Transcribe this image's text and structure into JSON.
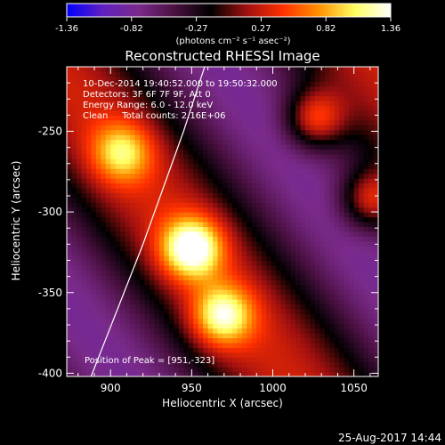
{
  "chart_data": {
    "type": "heatmap",
    "title": "Reconstructed RHESSI Image",
    "xlabel": "Heliocentric X (arcsec)",
    "ylabel": "Heliocentric Y (arcsec)",
    "xlim": [
      873,
      1065
    ],
    "ylim": [
      -402,
      -210
    ],
    "x_ticks": [
      900,
      950,
      1000,
      1050
    ],
    "y_ticks": [
      -250,
      -300,
      -350,
      -400
    ],
    "colorbar": {
      "min": -1.36,
      "max": 1.36,
      "ticks": [
        "-1.36",
        "-0.82",
        "-0.27",
        "0.27",
        "0.82",
        "1.36"
      ],
      "unit_label": "(photons cm⁻² s⁻¹ asec⁻²)",
      "colormap": [
        "#0000ff",
        "#6020c0",
        "#7a2a8a",
        "#4a1040",
        "#000000",
        "#a01010",
        "#ff3000",
        "#ff9000",
        "#ffff60",
        "#ffffff"
      ]
    },
    "annotations": [
      "10-Dec-2014 19:40:52.000 to 19:50:32.000",
      "Detectors: 3F 6F 7F 9F, Att 0",
      "Energy Range: 6.0 - 12.0 keV",
      "Clean     Total counts: 2.16E+06"
    ],
    "peak_text": "Position of Peak = [951,-323]",
    "peak": [
      951,
      -323
    ],
    "sources": [
      {
        "x": 950,
        "y": -322,
        "amp": 1.36
      },
      {
        "x": 969,
        "y": -364,
        "amp": 1.1
      },
      {
        "x": 1026,
        "y": -242,
        "amp": 0.95
      },
      {
        "x": 907,
        "y": -263,
        "amp": 0.85
      },
      {
        "x": 1060,
        "y": -292,
        "amp": 0.9
      }
    ],
    "limb_curve": [
      [
        888,
        -402
      ],
      [
        920,
        -320
      ],
      [
        945,
        -250
      ],
      [
        958,
        -210
      ]
    ]
  },
  "footer": {
    "date": "25-Aug-2017 14:44"
  }
}
